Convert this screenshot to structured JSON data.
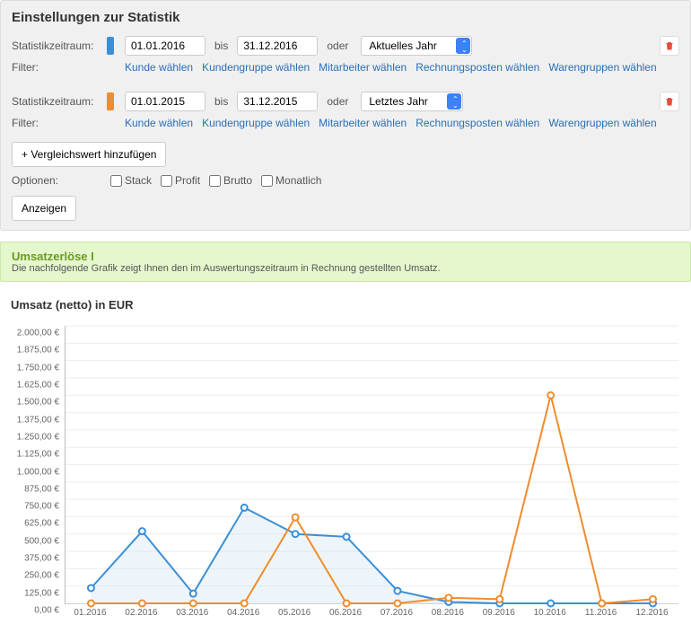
{
  "panel": {
    "title": "Einstellungen zur Statistik",
    "period_label": "Statistikzeitraum:",
    "filter_label": "Filter:",
    "bis": "bis",
    "oder": "oder",
    "add_compare": "+ Vergleichswert hinzufügen",
    "options_label": "Optionen:",
    "show_btn": "Anzeigen",
    "options": {
      "stack": "Stack",
      "profit": "Profit",
      "brutto": "Brutto",
      "monatlich": "Monatlich"
    },
    "filter_links": [
      "Kunde wählen",
      "Kundengruppe wählen",
      "Mitarbeiter wählen",
      "Rechnungsposten wählen",
      "Warengruppen wählen"
    ],
    "series": [
      {
        "color": "#3b8fd6",
        "from": "01.01.2016",
        "to": "31.12.2016",
        "select": "Aktuelles Jahr"
      },
      {
        "color": "#f08c2e",
        "from": "01.01.2015",
        "to": "31.12.2015",
        "select": "Letztes Jahr"
      }
    ]
  },
  "banner": {
    "title": "Umsatzerlöse I",
    "desc": "Die nachfolgende Grafik zeigt Ihnen den im Auswertungszeitraum in Rechnung gestellten Umsatz."
  },
  "chart": {
    "title": "Umsatz (netto) in EUR",
    "ylim": [
      0,
      2000
    ],
    "ytick_step": 125,
    "y_format_suffix": " €",
    "x_categories": [
      "01.2016",
      "02.2016",
      "03.2016",
      "04.2016",
      "05.2016",
      "06.2016",
      "07.2016",
      "08.2016",
      "09.2016",
      "10.2016",
      "11.2016",
      "12.2016"
    ],
    "background_color": "#ffffff",
    "grid_color": "#eeeeee",
    "axis_color": "#bbbbbb",
    "label_fontsize": 10,
    "series": [
      {
        "name": "2016",
        "color": "#3b8fd6",
        "fill": "#b7d9f1",
        "marker": "circle",
        "values": [
          110,
          520,
          70,
          690,
          500,
          480,
          90,
          10,
          0,
          0,
          0,
          0
        ]
      },
      {
        "name": "2015",
        "color": "#f08c2e",
        "fill": "none",
        "marker": "circle",
        "values": [
          0,
          0,
          0,
          0,
          620,
          0,
          0,
          40,
          30,
          1500,
          0,
          30
        ]
      }
    ]
  }
}
